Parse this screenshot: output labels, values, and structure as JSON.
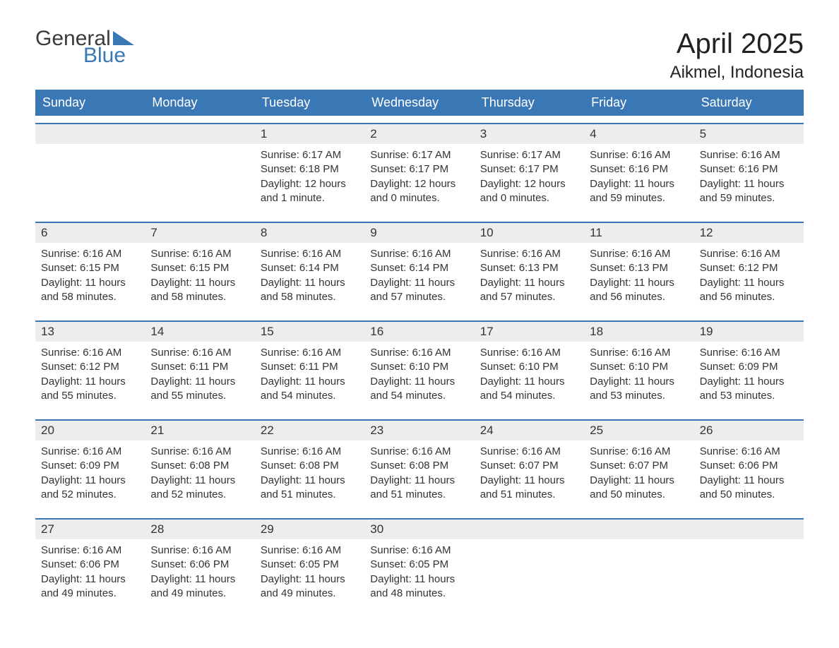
{
  "logo": {
    "word1": "General",
    "word2": "Blue",
    "triangle_color": "#3a78b5"
  },
  "title": "April 2025",
  "location": "Aikmel, Indonesia",
  "colors": {
    "header_bg": "#3a78b5",
    "header_text": "#ffffff",
    "cell_top_bg": "#ededed",
    "cell_top_border": "#3a78b5",
    "body_text": "#333333",
    "page_bg": "#ffffff"
  },
  "fonts": {
    "title_size": 40,
    "location_size": 24,
    "dayname_size": 18,
    "daynum_size": 17,
    "body_size": 15
  },
  "day_names": [
    "Sunday",
    "Monday",
    "Tuesday",
    "Wednesday",
    "Thursday",
    "Friday",
    "Saturday"
  ],
  "weeks": [
    [
      {
        "empty": true
      },
      {
        "empty": true
      },
      {
        "day": "1",
        "sunrise": "6:17 AM",
        "sunset": "6:18 PM",
        "daylight": "12 hours and 1 minute."
      },
      {
        "day": "2",
        "sunrise": "6:17 AM",
        "sunset": "6:17 PM",
        "daylight": "12 hours and 0 minutes."
      },
      {
        "day": "3",
        "sunrise": "6:17 AM",
        "sunset": "6:17 PM",
        "daylight": "12 hours and 0 minutes."
      },
      {
        "day": "4",
        "sunrise": "6:16 AM",
        "sunset": "6:16 PM",
        "daylight": "11 hours and 59 minutes."
      },
      {
        "day": "5",
        "sunrise": "6:16 AM",
        "sunset": "6:16 PM",
        "daylight": "11 hours and 59 minutes."
      }
    ],
    [
      {
        "day": "6",
        "sunrise": "6:16 AM",
        "sunset": "6:15 PM",
        "daylight": "11 hours and 58 minutes."
      },
      {
        "day": "7",
        "sunrise": "6:16 AM",
        "sunset": "6:15 PM",
        "daylight": "11 hours and 58 minutes."
      },
      {
        "day": "8",
        "sunrise": "6:16 AM",
        "sunset": "6:14 PM",
        "daylight": "11 hours and 58 minutes."
      },
      {
        "day": "9",
        "sunrise": "6:16 AM",
        "sunset": "6:14 PM",
        "daylight": "11 hours and 57 minutes."
      },
      {
        "day": "10",
        "sunrise": "6:16 AM",
        "sunset": "6:13 PM",
        "daylight": "11 hours and 57 minutes."
      },
      {
        "day": "11",
        "sunrise": "6:16 AM",
        "sunset": "6:13 PM",
        "daylight": "11 hours and 56 minutes."
      },
      {
        "day": "12",
        "sunrise": "6:16 AM",
        "sunset": "6:12 PM",
        "daylight": "11 hours and 56 minutes."
      }
    ],
    [
      {
        "day": "13",
        "sunrise": "6:16 AM",
        "sunset": "6:12 PM",
        "daylight": "11 hours and 55 minutes."
      },
      {
        "day": "14",
        "sunrise": "6:16 AM",
        "sunset": "6:11 PM",
        "daylight": "11 hours and 55 minutes."
      },
      {
        "day": "15",
        "sunrise": "6:16 AM",
        "sunset": "6:11 PM",
        "daylight": "11 hours and 54 minutes."
      },
      {
        "day": "16",
        "sunrise": "6:16 AM",
        "sunset": "6:10 PM",
        "daylight": "11 hours and 54 minutes."
      },
      {
        "day": "17",
        "sunrise": "6:16 AM",
        "sunset": "6:10 PM",
        "daylight": "11 hours and 54 minutes."
      },
      {
        "day": "18",
        "sunrise": "6:16 AM",
        "sunset": "6:10 PM",
        "daylight": "11 hours and 53 minutes."
      },
      {
        "day": "19",
        "sunrise": "6:16 AM",
        "sunset": "6:09 PM",
        "daylight": "11 hours and 53 minutes."
      }
    ],
    [
      {
        "day": "20",
        "sunrise": "6:16 AM",
        "sunset": "6:09 PM",
        "daylight": "11 hours and 52 minutes."
      },
      {
        "day": "21",
        "sunrise": "6:16 AM",
        "sunset": "6:08 PM",
        "daylight": "11 hours and 52 minutes."
      },
      {
        "day": "22",
        "sunrise": "6:16 AM",
        "sunset": "6:08 PM",
        "daylight": "11 hours and 51 minutes."
      },
      {
        "day": "23",
        "sunrise": "6:16 AM",
        "sunset": "6:08 PM",
        "daylight": "11 hours and 51 minutes."
      },
      {
        "day": "24",
        "sunrise": "6:16 AM",
        "sunset": "6:07 PM",
        "daylight": "11 hours and 51 minutes."
      },
      {
        "day": "25",
        "sunrise": "6:16 AM",
        "sunset": "6:07 PM",
        "daylight": "11 hours and 50 minutes."
      },
      {
        "day": "26",
        "sunrise": "6:16 AM",
        "sunset": "6:06 PM",
        "daylight": "11 hours and 50 minutes."
      }
    ],
    [
      {
        "day": "27",
        "sunrise": "6:16 AM",
        "sunset": "6:06 PM",
        "daylight": "11 hours and 49 minutes."
      },
      {
        "day": "28",
        "sunrise": "6:16 AM",
        "sunset": "6:06 PM",
        "daylight": "11 hours and 49 minutes."
      },
      {
        "day": "29",
        "sunrise": "6:16 AM",
        "sunset": "6:05 PM",
        "daylight": "11 hours and 49 minutes."
      },
      {
        "day": "30",
        "sunrise": "6:16 AM",
        "sunset": "6:05 PM",
        "daylight": "11 hours and 48 minutes."
      },
      {
        "empty": true
      },
      {
        "empty": true
      },
      {
        "empty": true
      }
    ]
  ],
  "labels": {
    "sunrise": "Sunrise:",
    "sunset": "Sunset:",
    "daylight": "Daylight:"
  }
}
